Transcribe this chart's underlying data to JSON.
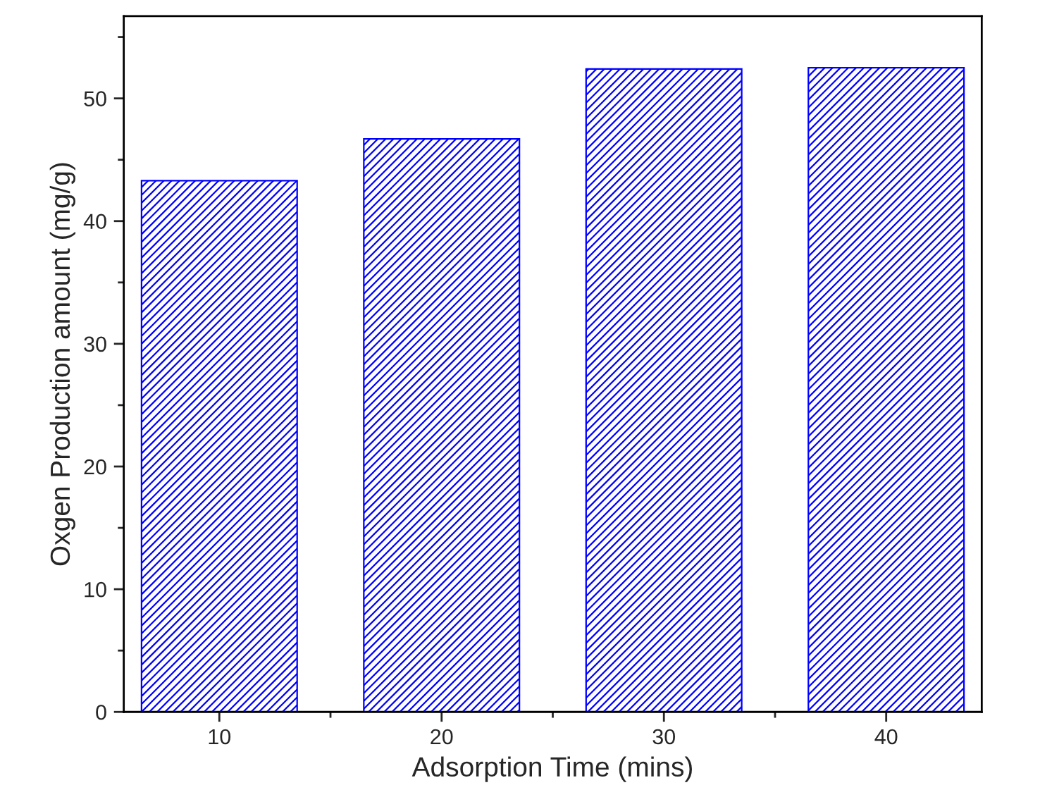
{
  "chart_data": {
    "type": "bar",
    "xlabel": "Adsorption Time (mins)",
    "ylabel": "Oxgen Production amount (mg/g)",
    "categories": [
      "10",
      "20",
      "30",
      "40"
    ],
    "values": [
      43.3,
      46.7,
      52.4,
      52.5
    ],
    "color": "#0000ff",
    "ylim": [
      0,
      56.7
    ],
    "yticks": [
      0,
      10,
      20,
      30,
      40,
      50
    ],
    "grid": false,
    "legend": false
  }
}
